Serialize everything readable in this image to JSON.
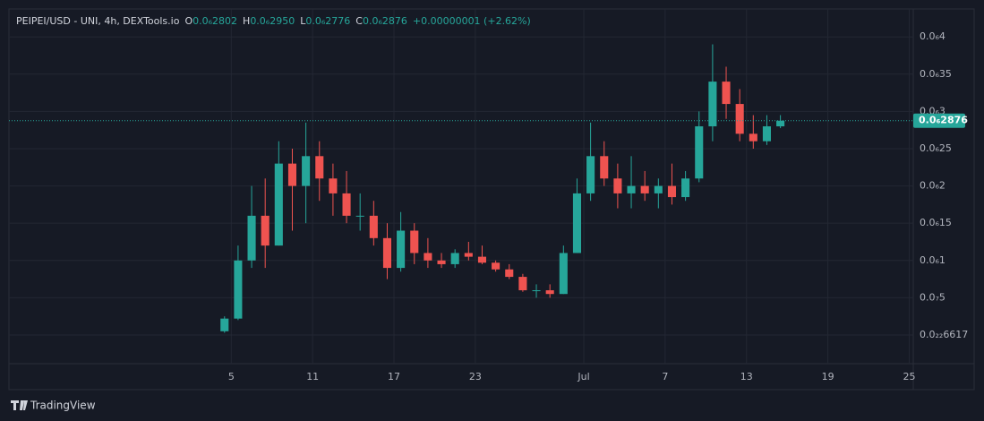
{
  "chart_data": {
    "type": "candlestick",
    "header": {
      "symbol": "PEIPEI/USD - UNI, 4h, DEXTools.io",
      "o_key": "O",
      "open": "0.0₆2802",
      "h_key": "H",
      "high": "0.0₆2950",
      "l_key": "L",
      "low": "0.0₆2776",
      "c_key": "C",
      "close": "0.0₆2876",
      "change": "+0.00000001 (+2.62%)"
    },
    "brand": "TradingView",
    "up_color": "#26a69a",
    "down_color": "#ef5350",
    "grid": true,
    "x": [
      4.5,
      5.5,
      6.5,
      7.5,
      8.5,
      9.5,
      10.5,
      11.5,
      12.5,
      13.5,
      14.5,
      15.5,
      16.5,
      17.5,
      18.5,
      19.5,
      20.5,
      21.5,
      22.5,
      23.5,
      24.5,
      25.5,
      26.5,
      27.5,
      28.5,
      29.5,
      30.5,
      31.5,
      32.5,
      33.5,
      34.5,
      35.5,
      36.5,
      37.5,
      38.5,
      39.5,
      40.5,
      41.5,
      42.5,
      43.5,
      44.5,
      45.5
    ],
    "open": [
      5e-09,
      2.2e-08,
      1e-07,
      1.6e-07,
      1.2e-07,
      2.3e-07,
      2e-07,
      2.4e-07,
      2.1e-07,
      1.9e-07,
      1.6e-07,
      1.6e-07,
      1.3e-07,
      9e-08,
      1.4e-07,
      1.1e-07,
      1e-07,
      9.5e-08,
      1.1e-07,
      1.05e-07,
      9.7e-08,
      8.8e-08,
      7.8e-08,
      6e-08,
      6e-08,
      5.5e-08,
      1.1e-07,
      1.9e-07,
      2.4e-07,
      2.1e-07,
      1.9e-07,
      2e-07,
      1.9e-07,
      2e-07,
      1.85e-07,
      2.1e-07,
      2.8e-07,
      3.4e-07,
      3.1e-07,
      2.7e-07,
      2.6e-07,
      2.8e-07
    ],
    "high": [
      2.5e-08,
      1.2e-07,
      2e-07,
      2.1e-07,
      2.6e-07,
      2.5e-07,
      2.85e-07,
      2.6e-07,
      2.3e-07,
      2.2e-07,
      1.9e-07,
      1.8e-07,
      1.5e-07,
      1.65e-07,
      1.5e-07,
      1.3e-07,
      1.1e-07,
      1.15e-07,
      1.25e-07,
      1.2e-07,
      1e-07,
      9.5e-08,
      8.2e-08,
      6.8e-08,
      6.8e-08,
      1.2e-07,
      2.1e-07,
      2.85e-07,
      2.6e-07,
      2.3e-07,
      2.4e-07,
      2.2e-07,
      2.1e-07,
      2.3e-07,
      2.2e-07,
      3e-07,
      3.9e-07,
      3.6e-07,
      3.3e-07,
      2.95e-07,
      2.95e-07,
      2.95e-07
    ],
    "low": [
      3e-09,
      2e-08,
      9e-08,
      9e-08,
      1.2e-07,
      1.4e-07,
      1.5e-07,
      1.8e-07,
      1.6e-07,
      1.5e-07,
      1.4e-07,
      1.2e-07,
      7.5e-08,
      8.5e-08,
      9.5e-08,
      9e-08,
      9e-08,
      9e-08,
      1e-07,
      9.5e-08,
      8.5e-08,
      7.5e-08,
      5.8e-08,
      5e-08,
      5e-08,
      5.5e-08,
      1.1e-07,
      1.8e-07,
      2e-07,
      1.7e-07,
      1.7e-07,
      1.8e-07,
      1.7e-07,
      1.75e-07,
      1.8e-07,
      2.05e-07,
      2.6e-07,
      2.9e-07,
      2.6e-07,
      2.5e-07,
      2.55e-07,
      2.776e-07
    ],
    "close": [
      2.2e-08,
      1e-07,
      1.6e-07,
      1.2e-07,
      2.3e-07,
      2e-07,
      2.4e-07,
      2.1e-07,
      1.9e-07,
      1.6e-07,
      1.6e-07,
      1.3e-07,
      9e-08,
      1.4e-07,
      1.1e-07,
      1e-07,
      9.5e-08,
      1.1e-07,
      1.05e-07,
      9.7e-08,
      8.8e-08,
      7.8e-08,
      6e-08,
      6e-08,
      5.5e-08,
      1.1e-07,
      1.9e-07,
      2.4e-07,
      2.1e-07,
      1.9e-07,
      2e-07,
      1.9e-07,
      2e-07,
      1.85e-07,
      2.1e-07,
      2.8e-07,
      3.4e-07,
      3.1e-07,
      2.7e-07,
      2.6e-07,
      2.8e-07,
      2.876e-07
    ],
    "last_price": {
      "value": 2.876e-07,
      "label": "0.0₆2876"
    },
    "xlim": [
      -11.4,
      55.3
    ],
    "xticks": [
      5,
      11,
      17,
      23,
      {
        "value": 31,
        "label": "Jul"
      },
      {
        "value": 37,
        "label": "7"
      },
      {
        "value": 43,
        "label": "13"
      },
      {
        "value": 49,
        "label": "19"
      },
      {
        "value": 55,
        "label": "25"
      }
    ],
    "ylim": [
      -3.85e-08,
      4.375e-07
    ],
    "yticks": [
      {
        "value": 4e-07,
        "label": "0.0₆4"
      },
      {
        "value": 3.5e-07,
        "label": "0.0₆35"
      },
      {
        "value": 3e-07,
        "label": "0.0₆3"
      },
      {
        "value": 2.5e-07,
        "label": "0.0₆25"
      },
      {
        "value": 2e-07,
        "label": "0.0₆2"
      },
      {
        "value": 1.5e-07,
        "label": "0.0₆15"
      },
      {
        "value": 1e-07,
        "label": "0.0₆1"
      },
      {
        "value": 5e-08,
        "label": "0.0₇5"
      },
      {
        "value": 6.617e-24,
        "label": "0.0₂₂6617"
      }
    ]
  }
}
